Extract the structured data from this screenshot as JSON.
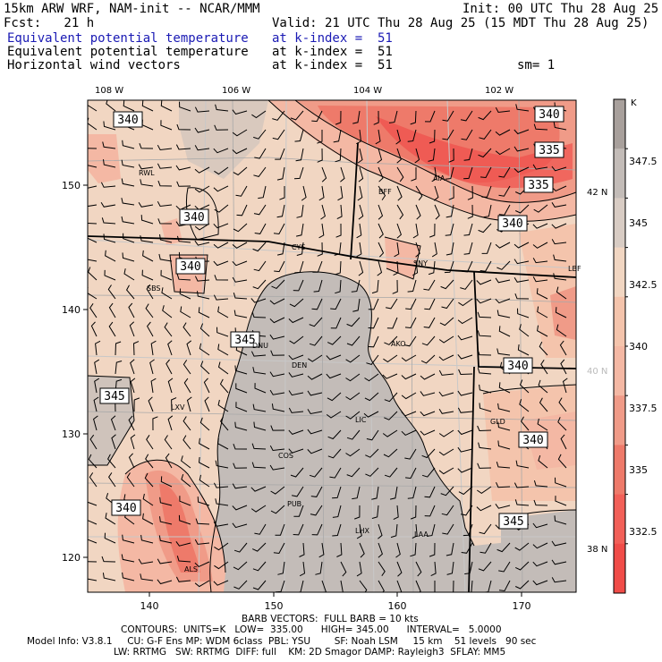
{
  "header": {
    "model_title": "15km ARW WRF, NAM-init -- NCAR/MMM",
    "init": "Init: 00 UTC Thu 28 Aug 25",
    "fcst": "Fcst:   21 h",
    "valid": "Valid: 21 UTC Thu 28 Aug 25 (15 MDT Thu 28 Aug 25)",
    "lines": [
      {
        "field": "Equivalent potential temperature",
        "level": "at k-index =  51"
      },
      {
        "field": "Equivalent potential temperature",
        "level": "at k-index =  51"
      },
      {
        "field": "Horizontal wind vectors",
        "level": "at k-index =  51"
      }
    ],
    "sm": "sm= 1"
  },
  "colors": {
    "grey": "#c3bcb8",
    "tan": "#f1d6c2",
    "light_pink": "#f4b8a4",
    "pink": "#f09b88",
    "salmon": "#ee7a6a",
    "red": "#f04c48"
  },
  "map": {
    "lon_labels": [
      "108 W",
      "106 W",
      "104 W",
      "102 W"
    ],
    "lat_labels": [
      "42 N",
      "40 N",
      "38 N"
    ],
    "x_ticks": [
      "140",
      "150",
      "160",
      "170"
    ],
    "y_ticks": [
      "150",
      "140",
      "130",
      "120"
    ],
    "cities": [
      "RWL",
      "BFF",
      "AIA",
      "CYS",
      "SNY",
      "LBF",
      "SBS",
      "DNU",
      "DEN",
      "AKO",
      "LXV",
      "LIC",
      "GLD",
      "COS",
      "PUB",
      "LHX",
      "LAA",
      "ALS"
    ],
    "contour_labels": [
      "340",
      "340",
      "335",
      "335",
      "340",
      "340",
      "340",
      "345",
      "340",
      "345",
      "340",
      "340",
      "345"
    ]
  },
  "colorbar": {
    "unit": "K",
    "labels": [
      "347.5",
      "345",
      "342.5",
      "340",
      "337.5",
      "335",
      "332.5"
    ],
    "colors": [
      "#a8a09c",
      "#c3bcb8",
      "#d8ccc4",
      "#f1d6c2",
      "#f4c4ac",
      "#f4b8a4",
      "#f09b88",
      "#ee7a6a",
      "#f26058",
      "#f04c48"
    ]
  },
  "footer": {
    "barb": "BARB VECTORS:  FULL BARB = 10 kts",
    "contours": "CONTOURS:  UNITS=K   LOW=  335.00      HIGH= 345.00      INTERVAL=   5.0000",
    "model_info": "Model Info: V3.8.1     CU: G-F Ens MP: WDM 6class  PBL: YSU        SF: Noah LSM     15 km    51 levels   90 sec",
    "physics": "LW: RRTMG   SW: RRTMG  DIFF: full    KM: 2D Smagor DAMP: Rayleigh3  SFLAY: MM5"
  }
}
